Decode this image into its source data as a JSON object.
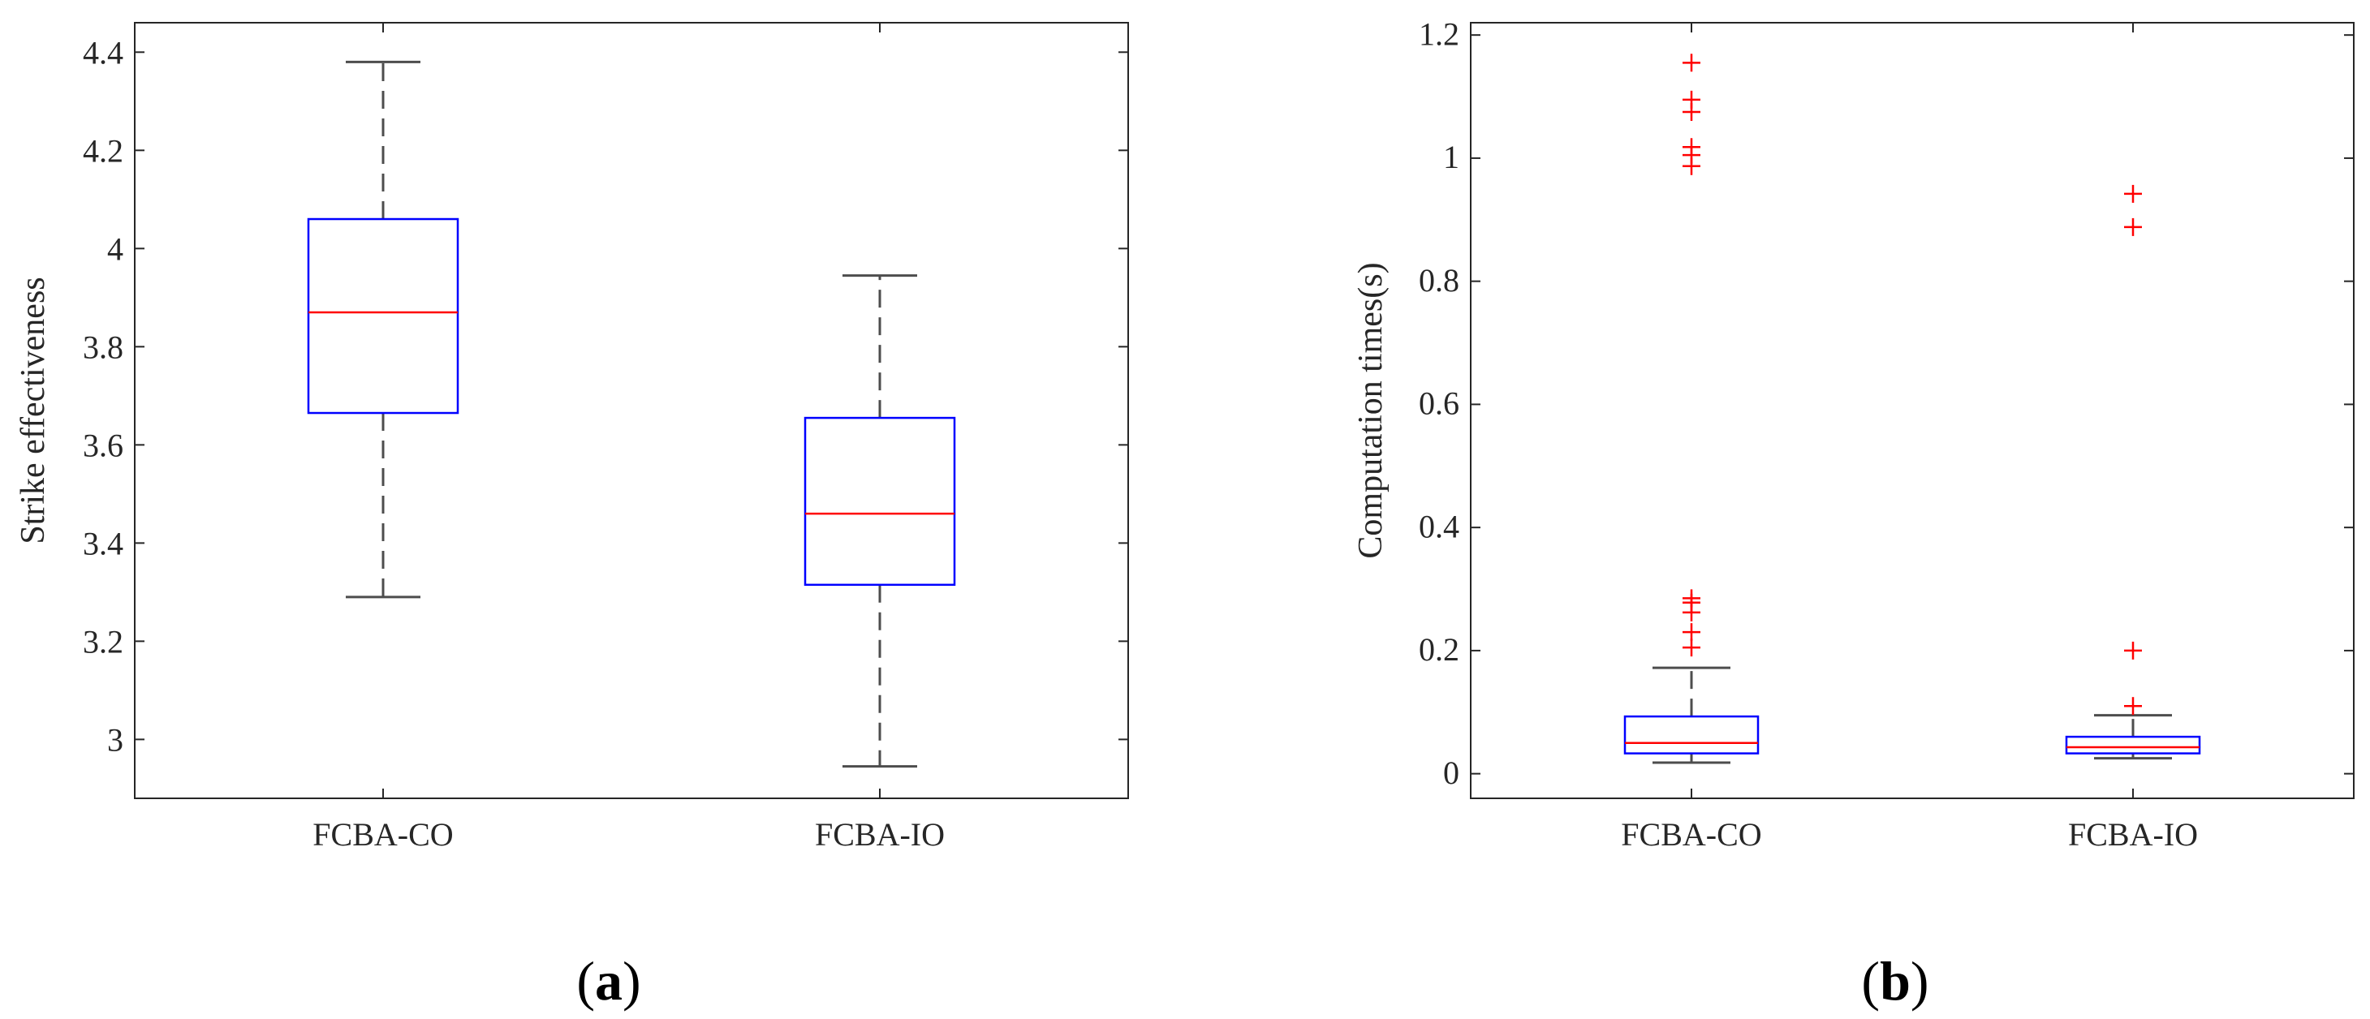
{
  "chart_data": [
    {
      "type": "box",
      "panel_label": "a",
      "title": "",
      "xlabel": "",
      "ylabel": "Strike effectiveness",
      "ylim": [
        2.88,
        4.46
      ],
      "yticks": [
        3,
        3.2,
        3.4,
        3.6,
        3.8,
        4,
        4.2,
        4.4
      ],
      "ytick_labels": [
        "3",
        "3.2",
        "3.4",
        "3.6",
        "3.8",
        "4",
        "4.2",
        "4.4"
      ],
      "grid": false,
      "categories": [
        "FCBA-CO",
        "FCBA-IO"
      ],
      "boxes": [
        {
          "name": "FCBA-CO",
          "whisker_low": 3.29,
          "q1": 3.665,
          "median": 3.87,
          "q3": 4.06,
          "whisker_high": 4.38,
          "outliers": []
        },
        {
          "name": "FCBA-IO",
          "whisker_low": 2.945,
          "q1": 3.315,
          "median": 3.46,
          "q3": 3.655,
          "whisker_high": 3.945,
          "outliers": []
        }
      ]
    },
    {
      "type": "box",
      "panel_label": "b",
      "title": "",
      "xlabel": "",
      "ylabel": "Computation times(s)",
      "ylim": [
        -0.04,
        1.22
      ],
      "yticks": [
        0,
        0.2,
        0.4,
        0.6,
        0.8,
        1,
        1.2
      ],
      "ytick_labels": [
        "0",
        "0.2",
        "0.4",
        "0.6",
        "0.8",
        "1",
        "1.2"
      ],
      "grid": false,
      "categories": [
        "FCBA-CO",
        "FCBA-IO"
      ],
      "boxes": [
        {
          "name": "FCBA-CO",
          "whisker_low": 0.018,
          "q1": 0.033,
          "median": 0.05,
          "q3": 0.093,
          "whisker_high": 0.172,
          "outliers": [
            0.205,
            0.23,
            0.262,
            0.278,
            0.285,
            0.987,
            1.005,
            1.018,
            1.075,
            1.095,
            1.155
          ]
        },
        {
          "name": "FCBA-IO",
          "whisker_low": 0.025,
          "q1": 0.033,
          "median": 0.043,
          "q3": 0.06,
          "whisker_high": 0.095,
          "outliers": [
            0.11,
            0.2,
            0.888,
            0.942
          ]
        }
      ]
    }
  ],
  "colors": {
    "box": "#0000ff",
    "median": "#ff0000",
    "whisker": "#4d4d4d",
    "outlier": "#ff0000",
    "axis": "#262626"
  }
}
